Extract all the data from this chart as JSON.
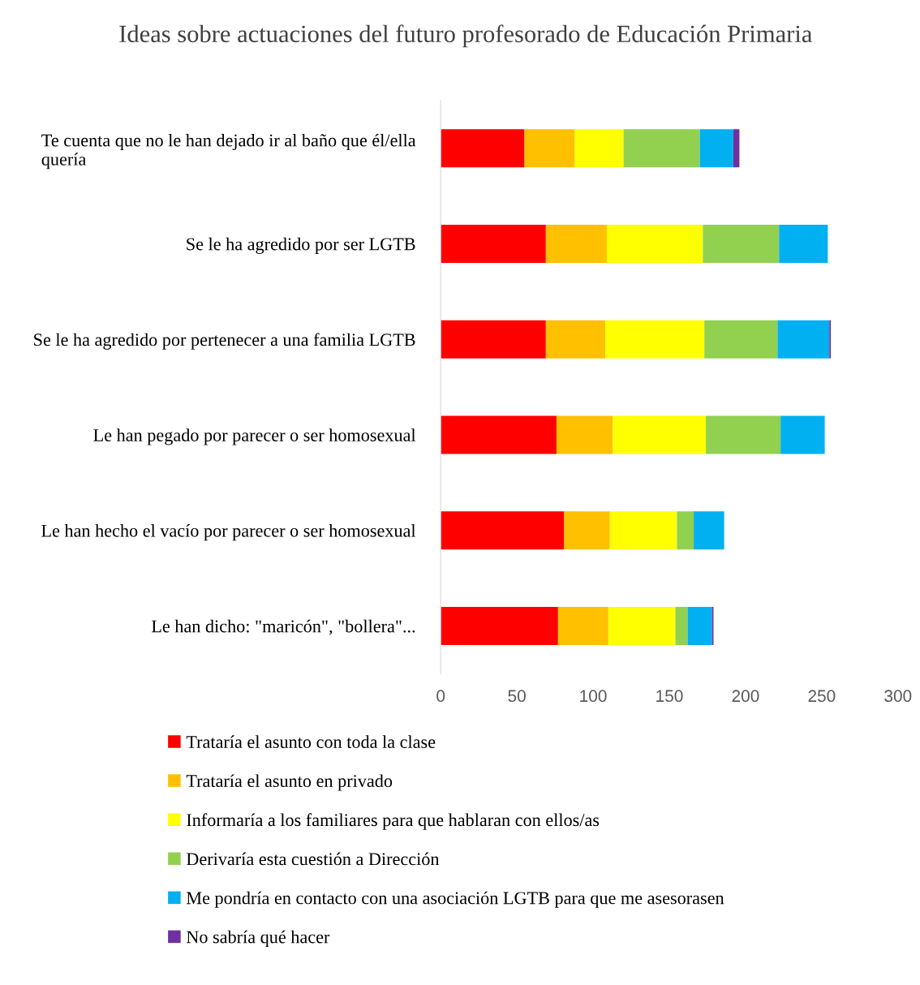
{
  "chart_data": {
    "type": "bar",
    "orientation": "horizontal",
    "stacked": true,
    "title": "Ideas sobre actuaciones del futuro profesorado de Educación Primaria",
    "categories": [
      "Te cuenta que no le han dejado ir al baño que él/ella quería",
      "Se le ha agredido por ser LGTB",
      "Se le ha agredido por pertenecer a una familia LGTB",
      "Le han pegado por parecer o ser homosexual",
      "Le han hecho el vacío por parecer o ser homosexual",
      "Le han dicho: \"maricón\", \"bollera\"..."
    ],
    "series": [
      {
        "name": "Trataría el asunto con toda la clase",
        "color": "#ff0000",
        "values": [
          55,
          69,
          69,
          76,
          81,
          77
        ]
      },
      {
        "name": "Trataría el asunto en privado",
        "color": "#ffc000",
        "values": [
          33,
          40,
          39,
          37,
          30,
          33
        ]
      },
      {
        "name": "Informaría a los familiares para que hablaran con ellos/as",
        "color": "#ffff00",
        "values": [
          32,
          63,
          65,
          61,
          44,
          44
        ]
      },
      {
        "name": "Derivaría esta cuestión a Dirección",
        "color": "#92d050",
        "values": [
          50,
          50,
          48,
          49,
          11,
          8
        ]
      },
      {
        "name": "Me pondría en contacto con una asociación LGTB para que me asesorasen",
        "color": "#00b0f0",
        "values": [
          22,
          32,
          34,
          29,
          20,
          16
        ]
      },
      {
        "name": "No sabría qué hacer",
        "color": "#7030a0",
        "values": [
          4,
          0,
          1,
          0,
          0,
          1
        ]
      }
    ],
    "xlim": [
      0,
      300
    ],
    "xticks": [
      0,
      50,
      100,
      150,
      200,
      250,
      300
    ],
    "grid": false,
    "legend": "bottom"
  }
}
